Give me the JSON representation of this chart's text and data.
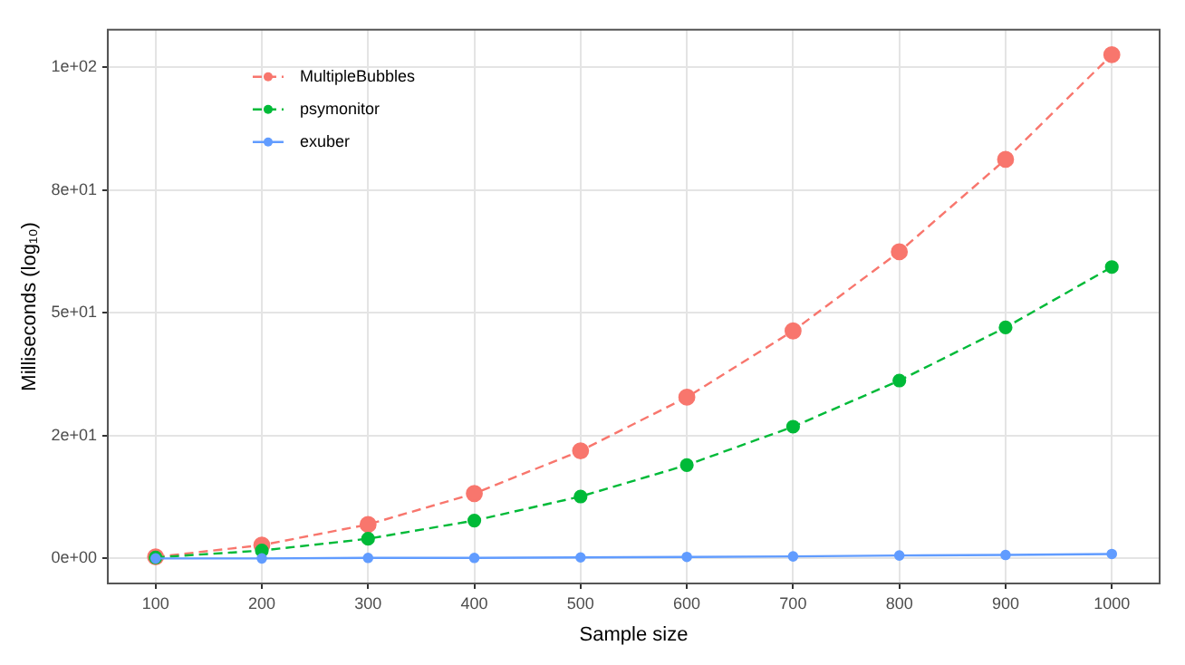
{
  "chart_data": {
    "type": "line",
    "xlabel": "Sample size",
    "ylabel": "Milliseconds (log₁₀)",
    "x": [
      100,
      200,
      300,
      400,
      500,
      600,
      700,
      800,
      900,
      1000
    ],
    "series": [
      {
        "name": "MultipleBubbles",
        "color": "#f8766d",
        "line_style": "dashed",
        "values": [
          0.3,
          2.7,
          6.9,
          13.2,
          21.9,
          32.8,
          46.3,
          62.4,
          81.2,
          102.5
        ]
      },
      {
        "name": "psymonitor",
        "color": "#00ba38",
        "line_style": "dashed",
        "values": [
          0.2,
          1.6,
          4.0,
          7.7,
          12.6,
          19.0,
          26.8,
          36.2,
          47.0,
          59.3
        ]
      },
      {
        "name": "exuber",
        "color": "#619cff",
        "line_style": "solid",
        "values": [
          0.0,
          0.0,
          0.1,
          0.1,
          0.2,
          0.3,
          0.4,
          0.6,
          0.7,
          0.9
        ]
      }
    ],
    "xlim": [
      55,
      1045
    ],
    "xticks": [
      100,
      200,
      300,
      400,
      500,
      600,
      700,
      800,
      900,
      1000
    ],
    "ylim": [
      -5.1,
      107.6
    ],
    "yticks": [
      {
        "value": 0,
        "label": "0e+00"
      },
      {
        "value": 25,
        "label": "2e+01"
      },
      {
        "value": 50,
        "label": "5e+01"
      },
      {
        "value": 75,
        "label": "8e+01"
      },
      {
        "value": 100,
        "label": "1e+02"
      }
    ],
    "grid": true,
    "legend": "top left",
    "marker": "circle"
  }
}
